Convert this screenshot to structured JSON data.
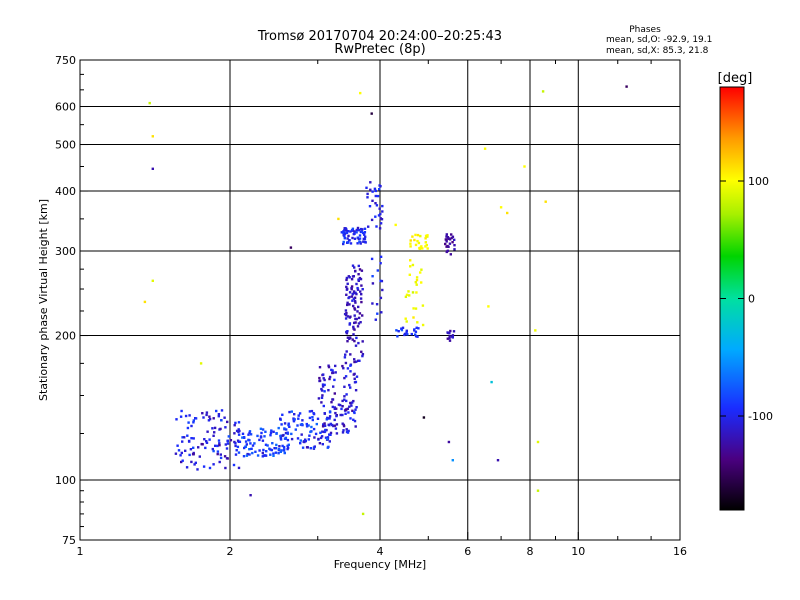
{
  "chart_data": {
    "type": "scatter",
    "title": "Tromsø 20170704 20:24:00–20:25:43",
    "subtitle": "RwPretec (8p)",
    "xlabel": "Frequency [MHz]",
    "ylabel": "Stationary phase Virtual Height [km]",
    "x_scale": "log",
    "y_scale": "log",
    "xlim": [
      1,
      16
    ],
    "ylim": [
      75,
      750
    ],
    "x_ticks": [
      1,
      2,
      4,
      6,
      8,
      10,
      16
    ],
    "x_tick_labels": [
      "1",
      "2",
      "4",
      "6",
      "8",
      "10",
      "16"
    ],
    "y_ticks": [
      75,
      100,
      200,
      300,
      400,
      500,
      600,
      750
    ],
    "y_tick_labels": [
      "75",
      "100",
      "200",
      "300",
      "400",
      "500",
      "600",
      "750"
    ],
    "x_gridlines": [
      2,
      4,
      6,
      8,
      10
    ],
    "y_gridlines": [
      100,
      200,
      300,
      400,
      500,
      600
    ],
    "grid": true,
    "legend_header": "Phases",
    "legend_lines": [
      "mean, sd,O: -92.9, 19.1",
      "mean, sd,X: 85.3, 21.8"
    ],
    "colorbar": {
      "label": "[deg]",
      "range": [
        -180,
        180
      ],
      "ticks": [
        100,
        0,
        -100
      ],
      "tick_labels": [
        "100",
        "0",
        "-100"
      ]
    },
    "clusters": [
      {
        "f_min": 1.55,
        "f_max": 2.1,
        "h_min": 105,
        "h_max": 140,
        "n": 110,
        "phase": -110,
        "phase_sd": 18
      },
      {
        "f_min": 2.05,
        "f_max": 2.6,
        "h_min": 112,
        "h_max": 128,
        "n": 90,
        "phase": -95,
        "phase_sd": 18
      },
      {
        "f_min": 2.5,
        "f_max": 3.2,
        "h_min": 115,
        "h_max": 140,
        "n": 110,
        "phase": -100,
        "phase_sd": 20
      },
      {
        "f_min": 3.0,
        "f_max": 3.6,
        "h_min": 125,
        "h_max": 175,
        "n": 120,
        "phase": -115,
        "phase_sd": 15
      },
      {
        "f_min": 3.4,
        "f_max": 3.7,
        "h_min": 175,
        "h_max": 280,
        "n": 110,
        "phase": -120,
        "phase_sd": 12
      },
      {
        "f_min": 3.35,
        "f_max": 3.75,
        "h_min": 310,
        "h_max": 335,
        "n": 60,
        "phase": -105,
        "phase_sd": 15
      },
      {
        "f_min": 3.75,
        "f_max": 4.05,
        "h_min": 330,
        "h_max": 420,
        "n": 30,
        "phase": -110,
        "phase_sd": 15
      },
      {
        "f_min": 3.85,
        "f_max": 4.05,
        "h_min": 200,
        "h_max": 300,
        "n": 15,
        "phase": -110,
        "phase_sd": 15
      },
      {
        "f_min": 4.3,
        "f_max": 4.8,
        "h_min": 198,
        "h_max": 208,
        "n": 20,
        "phase": -100,
        "phase_sd": 15
      },
      {
        "f_min": 4.6,
        "f_max": 5.0,
        "h_min": 300,
        "h_max": 325,
        "n": 25,
        "phase": 100,
        "phase_sd": 10
      },
      {
        "f_min": 4.5,
        "f_max": 4.9,
        "h_min": 210,
        "h_max": 290,
        "n": 25,
        "phase": 95,
        "phase_sd": 12
      },
      {
        "f_min": 5.4,
        "f_max": 5.65,
        "h_min": 295,
        "h_max": 325,
        "n": 25,
        "phase": -130,
        "phase_sd": 10
      },
      {
        "f_min": 5.4,
        "f_max": 5.65,
        "h_min": 195,
        "h_max": 205,
        "n": 12,
        "phase": -125,
        "phase_sd": 10
      }
    ],
    "isolated_points": [
      [
        1.38,
        610,
        80
      ],
      [
        1.4,
        520,
        110
      ],
      [
        1.4,
        445,
        -125
      ],
      [
        1.35,
        235,
        110
      ],
      [
        1.4,
        260,
        90
      ],
      [
        1.75,
        175,
        90
      ],
      [
        2.2,
        93,
        -125
      ],
      [
        2.65,
        305,
        -150
      ],
      [
        3.3,
        350,
        110
      ],
      [
        3.65,
        640,
        100
      ],
      [
        3.7,
        85,
        80
      ],
      [
        3.85,
        580,
        -160
      ],
      [
        4.3,
        340,
        100
      ],
      [
        4.9,
        135,
        -170
      ],
      [
        5.5,
        120,
        -130
      ],
      [
        5.6,
        110,
        -60
      ],
      [
        6.5,
        490,
        100
      ],
      [
        6.6,
        230,
        100
      ],
      [
        6.7,
        160,
        -30
      ],
      [
        6.9,
        110,
        -125
      ],
      [
        7.0,
        370,
        100
      ],
      [
        7.2,
        360,
        110
      ],
      [
        7.8,
        450,
        100
      ],
      [
        8.2,
        205,
        95
      ],
      [
        8.3,
        120,
        90
      ],
      [
        8.3,
        95,
        80
      ],
      [
        8.5,
        645,
        80
      ],
      [
        8.6,
        380,
        110
      ],
      [
        12.5,
        660,
        -150
      ]
    ]
  }
}
